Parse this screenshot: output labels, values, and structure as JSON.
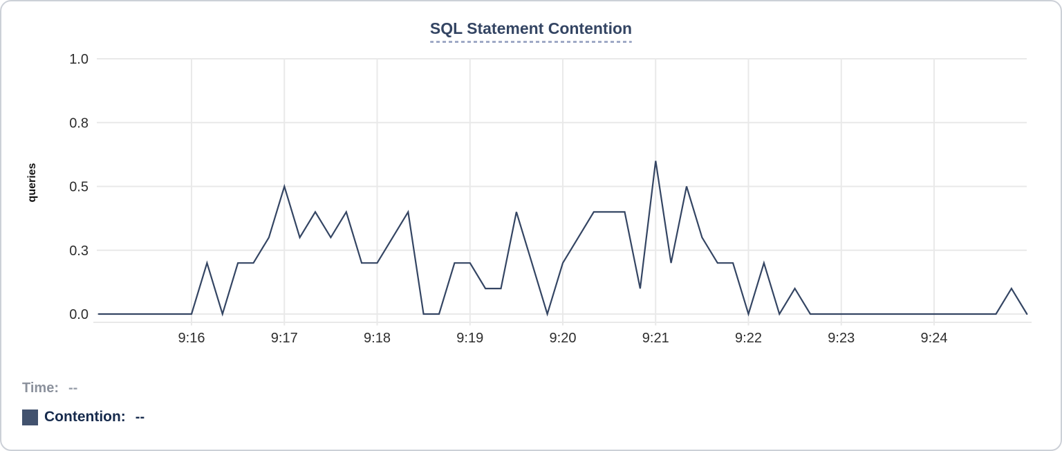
{
  "card": {
    "title": "SQL Statement Contention"
  },
  "readout": {
    "time_label": "Time:",
    "time_value": "--",
    "contention_label": "Contention:",
    "contention_value": "--"
  },
  "colors": {
    "line": "#344563",
    "legend_swatch": "#42526e",
    "title_text": "#344563",
    "title_underline": "#9fa9c6",
    "grid": "#e9e9e9",
    "tick_text": "#2d2d2d",
    "y_axis_title_text": "#111111",
    "time_label_text": "#8b919c",
    "contention_label_text": "#172b4d"
  },
  "chart_data": {
    "type": "line",
    "title": "SQL Statement Contention",
    "xlabel": "",
    "ylabel": "queries",
    "ylim": [
      0,
      1
    ],
    "grid": true,
    "legend_position": "bottom-left",
    "x_start": "9:15:00",
    "x_end": "9:25:00",
    "x_interval_seconds": 10,
    "x_tick_labels": [
      "9:16",
      "9:17",
      "9:18",
      "9:19",
      "9:20",
      "9:21",
      "9:22",
      "9:23",
      "9:24"
    ],
    "y_ticks": [
      {
        "v": 0,
        "label": "0.0"
      },
      {
        "v": 0.25,
        "label": "0.3"
      },
      {
        "v": 0.5,
        "label": "0.5"
      },
      {
        "v": 0.75,
        "label": "0.8"
      },
      {
        "v": 1,
        "label": "1.0"
      }
    ],
    "x_times": [
      "9:15:00",
      "9:15:10",
      "9:15:20",
      "9:15:30",
      "9:15:40",
      "9:15:50",
      "9:16:00",
      "9:16:10",
      "9:16:20",
      "9:16:30",
      "9:16:40",
      "9:16:50",
      "9:17:00",
      "9:17:10",
      "9:17:20",
      "9:17:30",
      "9:17:40",
      "9:17:50",
      "9:18:00",
      "9:18:10",
      "9:18:20",
      "9:18:30",
      "9:18:40",
      "9:18:50",
      "9:19:00",
      "9:19:10",
      "9:19:20",
      "9:19:30",
      "9:19:40",
      "9:19:50",
      "9:20:00",
      "9:20:10",
      "9:20:20",
      "9:20:30",
      "9:20:40",
      "9:20:50",
      "9:21:00",
      "9:21:10",
      "9:21:20",
      "9:21:30",
      "9:21:40",
      "9:21:50",
      "9:22:00",
      "9:22:10",
      "9:22:20",
      "9:22:30",
      "9:22:40",
      "9:22:50",
      "9:23:00",
      "9:23:10",
      "9:23:20",
      "9:23:30",
      "9:23:40",
      "9:23:50",
      "9:24:00",
      "9:24:10",
      "9:24:20",
      "9:24:30",
      "9:24:40",
      "9:24:50",
      "9:25:00"
    ],
    "series": [
      {
        "name": "Contention",
        "color": "#344563",
        "values": [
          0,
          0,
          0,
          0,
          0,
          0,
          0,
          0.2,
          0,
          0.2,
          0.2,
          0.3,
          0.5,
          0.3,
          0.4,
          0.3,
          0.4,
          0.2,
          0.2,
          0.3,
          0.4,
          0,
          0,
          0.2,
          0.2,
          0.1,
          0.1,
          0.4,
          0.2,
          0,
          0.2,
          0.3,
          0.4,
          0.4,
          0.4,
          0.1,
          0.6,
          0.2,
          0.5,
          0.3,
          0.2,
          0.2,
          0,
          0.2,
          0,
          0.1,
          0,
          0,
          0,
          0,
          0,
          0,
          0,
          0,
          0,
          0,
          0,
          0,
          0,
          0.1,
          0
        ]
      }
    ]
  }
}
